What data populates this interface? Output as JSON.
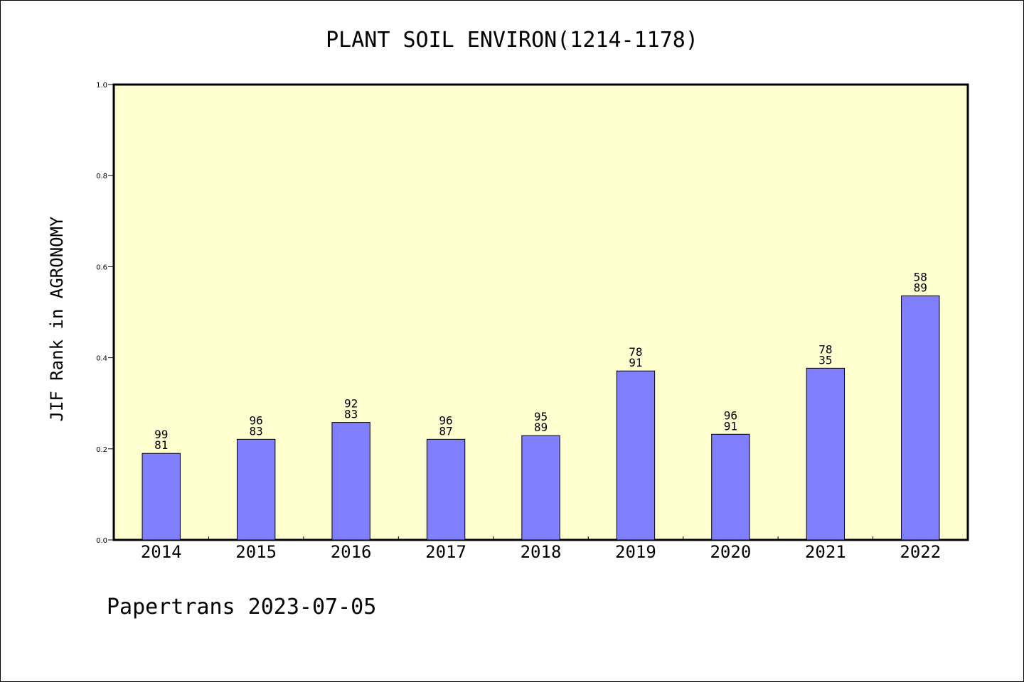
{
  "chart_data": {
    "type": "bar",
    "title": "PLANT SOIL ENVIRON(1214-1178)",
    "ylabel": "JIF Rank in AGRONOMY",
    "xlabel": "",
    "ylim": [
      0,
      1.0
    ],
    "yticks": [
      "0.0",
      "0.2",
      "0.4",
      "0.6",
      "0.8",
      "1.0"
    ],
    "categories": [
      "2014",
      "2015",
      "2016",
      "2017",
      "2018",
      "2019",
      "2020",
      "2021",
      "2022"
    ],
    "values": [
      0.19,
      0.221,
      0.258,
      0.221,
      0.229,
      0.371,
      0.232,
      0.377,
      0.536
    ],
    "bar_labels": [
      [
        "99",
        "81"
      ],
      [
        "96",
        "83"
      ],
      [
        "92",
        "83"
      ],
      [
        "96",
        "87"
      ],
      [
        "95",
        "89"
      ],
      [
        "78",
        "91"
      ],
      [
        "96",
        "91"
      ],
      [
        "78",
        "35"
      ],
      [
        "58",
        "89"
      ]
    ],
    "grid": false,
    "colors": {
      "plot_background": "#ffffd0",
      "bar_fill": "#8080ff",
      "bar_stroke": "#000000"
    }
  },
  "footer": "Papertrans 2023-07-05"
}
